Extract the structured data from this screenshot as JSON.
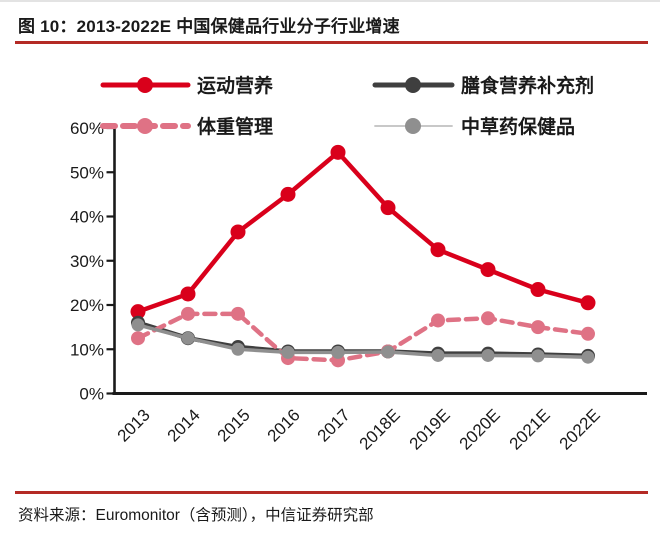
{
  "header": {
    "title": "图 10：2013-2022E 中国保健品行业分子行业增速"
  },
  "footer": {
    "source": "资料来源：Euromonitor（含预测），中信证券研究部"
  },
  "colors": {
    "rule_red": "#b42a25",
    "axis_text": "#1a1a1a",
    "series_sports_red": "#d9001b",
    "series_dietary_dark": "#3f3f3f",
    "series_weight_pink": "#df7285",
    "series_herbal_gray": "#8f8f8f",
    "legend_gray_line": "#c0c0c0"
  },
  "chart_data": {
    "type": "line",
    "title": "2013-2022E 中国保健品行业分子行业增速",
    "categories": [
      "2013",
      "2014",
      "2015",
      "2016",
      "2017",
      "2018E",
      "2019E",
      "2020E",
      "2021E",
      "2022E"
    ],
    "series": [
      {
        "name": "运动营养",
        "color": "#d9001b",
        "style": "solid",
        "line_width": 4.5,
        "marker_r": 7.5,
        "values": [
          18.5,
          22.5,
          36.5,
          45,
          54.5,
          42,
          32.5,
          28,
          23.5,
          20.5
        ]
      },
      {
        "name": "膳食营养补充剂",
        "color": "#3f3f3f",
        "style": "solid",
        "line_width": 4.5,
        "marker_r": 7,
        "values": [
          16,
          12.5,
          10.5,
          9.5,
          9.5,
          9.5,
          9,
          9,
          8.8,
          8.5
        ]
      },
      {
        "name": "体重管理",
        "color": "#df7285",
        "style": "dashed",
        "line_width": 4.5,
        "marker_r": 7,
        "values": [
          12.5,
          18,
          18,
          8,
          7.5,
          9.5,
          16.5,
          17,
          15,
          13.5
        ]
      },
      {
        "name": "中草药保健品",
        "color": "#8f8f8f",
        "style": "solid",
        "line_width": 3.5,
        "marker_r": 6.5,
        "values": [
          15.5,
          12.5,
          10,
          9.3,
          9.3,
          9.4,
          8.6,
          8.6,
          8.5,
          8.2
        ]
      }
    ],
    "xlabel": "",
    "ylabel": "",
    "ylim": [
      0,
      60
    ],
    "ytick_step": 10,
    "ytick_labels": [
      "0%",
      "10%",
      "20%",
      "30%",
      "40%",
      "50%",
      "60%"
    ],
    "grid": false,
    "legend_position": "top",
    "legend_rows": [
      [
        "运动营养",
        "膳食营养补充剂"
      ],
      [
        "体重管理",
        "中草药保健品"
      ]
    ]
  }
}
